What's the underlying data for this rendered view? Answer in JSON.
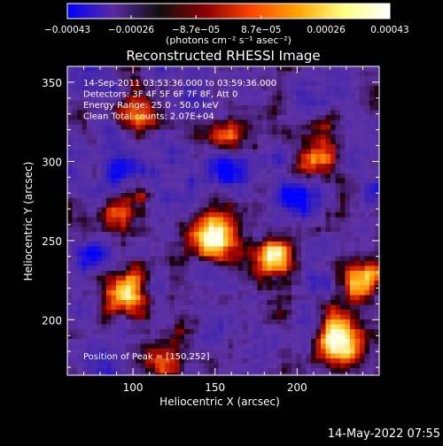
{
  "colorbar": {
    "tick_labels": [
      "−0.00043",
      "−0.00026",
      "−8.7e−05",
      "8.7e−05",
      "0.00026",
      "0.00043"
    ],
    "tick_values": [
      -0.00043,
      -0.00026,
      -8.7e-05,
      8.7e-05,
      0.00026,
      0.00043
    ],
    "range": [
      -0.00043,
      0.00043
    ],
    "unit_label": "(photons cm⁻² s⁻¹ asec⁻²)",
    "colors": [
      "#0000ff",
      "#5a2aa0",
      "#101010",
      "#8b0000",
      "#ff4500",
      "#ffa500",
      "#ffff80",
      "#ffffff"
    ]
  },
  "chart_data": {
    "type": "heatmap",
    "title": "Reconstructed RHESSI Image",
    "xlabel": "Heliocentric X (arcsec)",
    "ylabel": "Heliocentric Y (arcsec)",
    "xlim": [
      60,
      250
    ],
    "ylim": [
      165,
      360
    ],
    "xticks": [
      100,
      150,
      200
    ],
    "yticks": [
      200,
      250,
      300,
      350
    ],
    "annotations": [
      "14-Sep-2011 03:53:36.000 to 03:59:36.000",
      "Detectors: 3F 4F 5F 6F 7F 8F, Att 0",
      "Energy Range: 25.0 - 50.0 keV",
      "Clean    Total counts: 2.07E+04"
    ],
    "peak_label": "Position of Peak = [150,252]",
    "peak": [
      150,
      252
    ],
    "sources": [
      {
        "x": 150,
        "y": 252,
        "intensity": 1.0
      },
      {
        "x": 185,
        "y": 240,
        "intensity": 0.95
      },
      {
        "x": 225,
        "y": 185,
        "intensity": 0.9
      },
      {
        "x": 240,
        "y": 225,
        "intensity": 0.8
      },
      {
        "x": 95,
        "y": 215,
        "intensity": 0.7
      },
      {
        "x": 105,
        "y": 330,
        "intensity": 0.65
      },
      {
        "x": 120,
        "y": 175,
        "intensity": 0.6
      },
      {
        "x": 90,
        "y": 270,
        "intensity": 0.55
      },
      {
        "x": 160,
        "y": 320,
        "intensity": 0.5
      },
      {
        "x": 210,
        "y": 300,
        "intensity": 0.5
      }
    ],
    "negatives": [
      {
        "x": 90,
        "y": 290
      },
      {
        "x": 155,
        "y": 295
      },
      {
        "x": 200,
        "y": 280
      },
      {
        "x": 75,
        "y": 240
      }
    ]
  },
  "footer": {
    "date": "14-May-2022 07:55"
  }
}
